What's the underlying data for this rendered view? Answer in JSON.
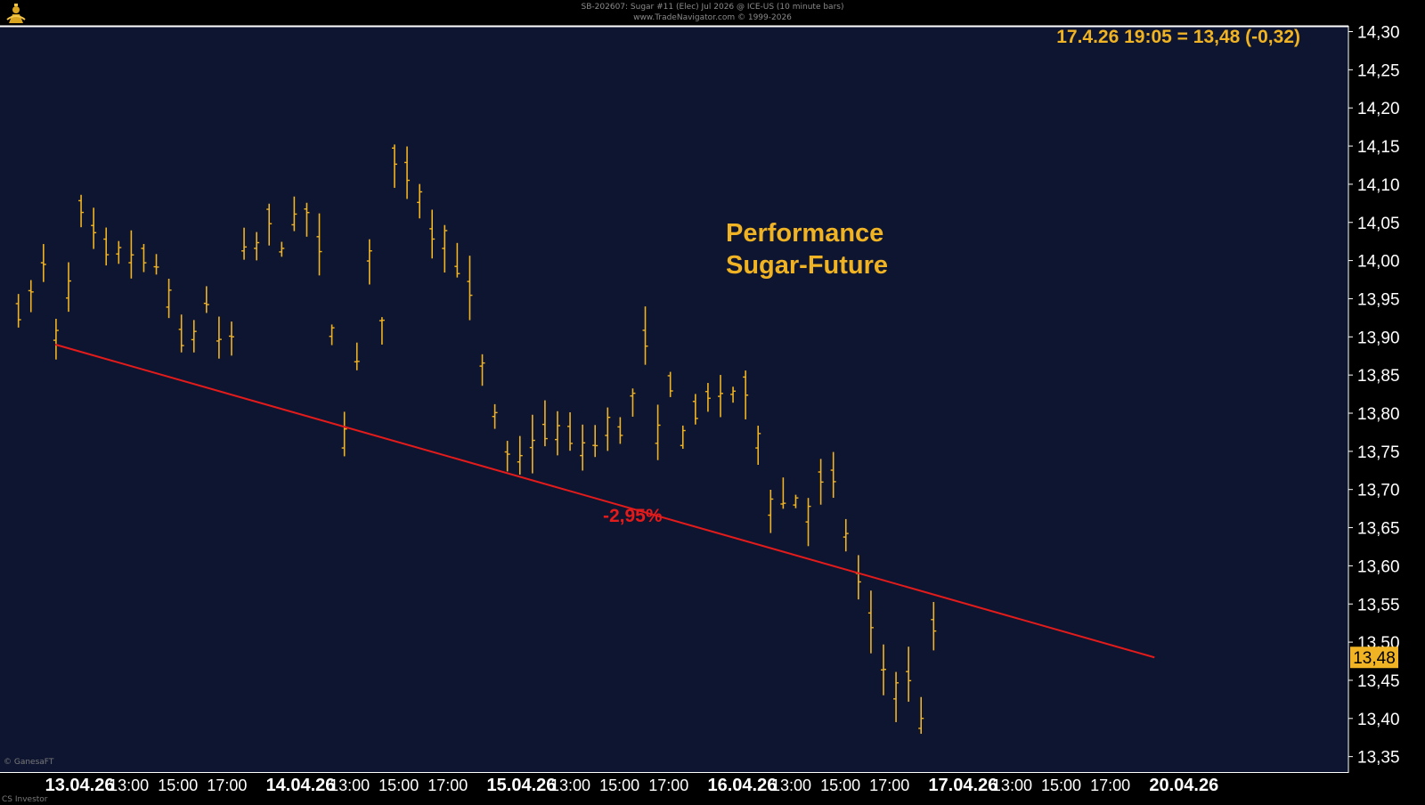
{
  "header": {
    "line1": "SB-202607:  Sugar #11 (Elec) Jul 2026 @ ICE-US  (10 minute bars)",
    "line2": "www.TradeNavigator.com © 1999-2026"
  },
  "quote_label": "17.4.26 19:05 = 13,48 (-0,32)",
  "title_line1": "Performance",
  "title_line2": "Sugar-Future",
  "trend_label": "-2,95%",
  "watermark": "© GanesaFT",
  "footer": "CS Investor",
  "colors": {
    "background": "#0e1530",
    "bars": "#f0b323",
    "trendline": "#e31b1b",
    "axis_text": "#ffffff",
    "frame": "#ffffff"
  },
  "icons": {
    "logo": "ganesha-logo-icon"
  },
  "chart_data": {
    "type": "ohlc",
    "title": "Performance Sugar-Future",
    "ylim": [
      13.34,
      14.31
    ],
    "yticks": [
      13.35,
      13.4,
      13.45,
      13.5,
      13.55,
      13.6,
      13.65,
      13.7,
      13.75,
      13.8,
      13.85,
      13.9,
      13.95,
      14.0,
      14.05,
      14.1,
      14.15,
      14.2,
      14.25,
      14.3
    ],
    "ytick_labels": [
      "13,35",
      "13,40",
      "13,45",
      "13,50",
      "13,55",
      "13,60",
      "13,65",
      "13,70",
      "13,75",
      "13,80",
      "13,85",
      "13,90",
      "13,95",
      "14,00",
      "14,05",
      "14,10",
      "14,15",
      "14,20",
      "14,25",
      "14,30"
    ],
    "x_labels": [
      {
        "t": 1.0,
        "text": "13.04.26",
        "bold": true
      },
      {
        "t": 3.0,
        "text": "13:00"
      },
      {
        "t": 5.0,
        "text": "15:00"
      },
      {
        "t": 7.0,
        "text": "17:00"
      },
      {
        "t": 10.0,
        "text": "14.04.26",
        "bold": true
      },
      {
        "t": 12.0,
        "text": "13:00"
      },
      {
        "t": 14.0,
        "text": "15:00"
      },
      {
        "t": 16.0,
        "text": "17:00"
      },
      {
        "t": 19.0,
        "text": "15.04.26",
        "bold": true
      },
      {
        "t": 21.0,
        "text": "13:00"
      },
      {
        "t": 23.0,
        "text": "15:00"
      },
      {
        "t": 25.0,
        "text": "17:00"
      },
      {
        "t": 28.0,
        "text": "16.04.26",
        "bold": true
      },
      {
        "t": 30.0,
        "text": "13:00"
      },
      {
        "t": 32.0,
        "text": "15:00"
      },
      {
        "t": 34.0,
        "text": "17:00"
      },
      {
        "t": 37.0,
        "text": "17.04.26",
        "bold": true
      },
      {
        "t": 39.0,
        "text": "13:00"
      },
      {
        "t": 41.0,
        "text": "15:00"
      },
      {
        "t": 43.0,
        "text": "17:00"
      },
      {
        "t": 46.0,
        "text": "20.04.26",
        "bold": true
      }
    ],
    "last_price": 13.48,
    "last_price_label": "13,48",
    "trendline": {
      "from": [
        0.0,
        13.89
      ],
      "to": [
        44.8,
        13.48
      ]
    },
    "anchors": [
      [
        -1.5,
        13.94
      ],
      [
        -1.0,
        13.95
      ],
      [
        -0.5,
        13.99
      ],
      [
        0.0,
        13.9
      ],
      [
        0.25,
        13.88
      ],
      [
        0.5,
        13.94
      ],
      [
        0.6,
        14.0
      ],
      [
        0.85,
        14.06
      ],
      [
        1.2,
        14.04
      ],
      [
        1.6,
        14.02
      ],
      [
        1.9,
        13.98
      ],
      [
        2.3,
        14.01
      ],
      [
        2.9,
        14.0
      ],
      [
        3.3,
        14.02
      ],
      [
        3.7,
        13.98
      ],
      [
        4.1,
        13.99
      ],
      [
        4.4,
        13.98
      ],
      [
        4.75,
        13.93
      ],
      [
        5.0,
        13.88
      ],
      [
        5.5,
        13.89
      ],
      [
        5.8,
        13.93
      ],
      [
        6.2,
        13.95
      ],
      [
        6.5,
        13.9
      ],
      [
        6.9,
        13.86
      ],
      [
        7.05,
        13.83
      ],
      [
        7.3,
        13.95
      ],
      [
        7.6,
        14.0
      ],
      [
        8.0,
        14.01
      ],
      [
        8.4,
        14.03
      ],
      [
        8.8,
        14.04
      ],
      [
        9.2,
        14.03
      ],
      [
        9.6,
        14.04
      ],
      [
        10.0,
        14.05
      ],
      [
        10.35,
        14.07
      ],
      [
        10.6,
        14.02
      ],
      [
        10.9,
        13.98
      ],
      [
        11.2,
        13.92
      ],
      [
        11.5,
        13.85
      ],
      [
        11.75,
        13.79
      ],
      [
        12.0,
        13.82
      ],
      [
        12.3,
        13.86
      ],
      [
        12.5,
        13.98
      ],
      [
        12.8,
        14.0
      ],
      [
        13.1,
        13.97
      ],
      [
        13.35,
        13.93
      ],
      [
        13.65,
        14.05
      ],
      [
        13.9,
        14.15
      ],
      [
        14.2,
        14.13
      ],
      [
        14.4,
        14.11
      ],
      [
        14.6,
        14.14
      ],
      [
        14.9,
        14.09
      ],
      [
        15.2,
        14.06
      ],
      [
        15.5,
        14.03
      ],
      [
        15.9,
        14.04
      ],
      [
        16.3,
        14.0
      ],
      [
        16.7,
        13.98
      ],
      [
        17.0,
        13.92
      ],
      [
        17.3,
        13.86
      ],
      [
        17.6,
        13.85
      ],
      [
        17.9,
        13.79
      ],
      [
        18.15,
        13.75
      ],
      [
        18.4,
        13.73
      ],
      [
        18.7,
        13.76
      ],
      [
        19.0,
        13.73
      ],
      [
        19.3,
        13.76
      ],
      [
        19.6,
        13.79
      ],
      [
        19.8,
        13.73
      ],
      [
        20.0,
        13.77
      ],
      [
        20.3,
        13.79
      ],
      [
        20.6,
        13.77
      ],
      [
        21.0,
        13.75
      ],
      [
        21.4,
        13.77
      ],
      [
        21.8,
        13.74
      ],
      [
        22.2,
        13.77
      ],
      [
        22.6,
        13.79
      ],
      [
        23.0,
        13.78
      ],
      [
        23.4,
        13.8
      ],
      [
        23.8,
        13.86
      ],
      [
        24.1,
        13.88
      ],
      [
        24.3,
        13.82
      ],
      [
        24.6,
        13.76
      ],
      [
        24.9,
        13.81
      ],
      [
        25.2,
        13.83
      ],
      [
        25.5,
        13.8
      ],
      [
        25.8,
        13.77
      ],
      [
        26.1,
        13.79
      ],
      [
        26.5,
        13.83
      ],
      [
        26.9,
        13.83
      ],
      [
        27.2,
        13.8
      ],
      [
        27.5,
        13.82
      ],
      [
        27.9,
        13.86
      ],
      [
        28.2,
        13.8
      ],
      [
        28.6,
        13.78
      ],
      [
        29.0,
        13.72
      ],
      [
        29.3,
        13.68
      ],
      [
        29.7,
        13.68
      ],
      [
        30.1,
        13.69
      ],
      [
        30.5,
        13.7
      ],
      [
        30.9,
        13.66
      ],
      [
        31.2,
        13.7
      ],
      [
        31.5,
        13.71
      ],
      [
        31.9,
        13.68
      ],
      [
        32.3,
        13.64
      ],
      [
        32.7,
        13.58
      ],
      [
        33.1,
        13.54
      ],
      [
        33.5,
        13.46
      ],
      [
        33.9,
        13.47
      ],
      [
        34.3,
        13.45
      ],
      [
        34.7,
        13.45
      ],
      [
        35.0,
        13.42
      ],
      [
        35.3,
        13.41
      ],
      [
        35.6,
        13.46
      ],
      [
        35.8,
        13.5
      ]
    ]
  }
}
